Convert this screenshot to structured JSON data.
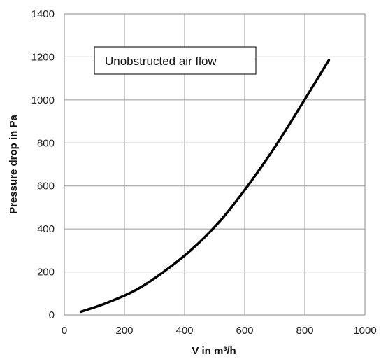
{
  "chart_data": {
    "type": "line",
    "title": "",
    "xlabel": "V in m³/h",
    "ylabel": "Pressure drop in Pa",
    "xlim": [
      0,
      1000
    ],
    "ylim": [
      0,
      1400
    ],
    "x_ticks": [
      0,
      200,
      400,
      600,
      800,
      1000
    ],
    "y_ticks": [
      0,
      200,
      400,
      600,
      800,
      1000,
      1200,
      1400
    ],
    "x_tick_labels": [
      "0",
      "200",
      "400",
      "600",
      "800",
      "1000"
    ],
    "y_tick_labels": [
      "0",
      "200",
      "400",
      "600",
      "800",
      "1000",
      "1200",
      "1400"
    ],
    "grid": true,
    "annotation": "Unobstructed air flow",
    "series": [
      {
        "x": [
          55,
          130,
          230,
          320,
          420,
          520,
          610,
          700,
          790,
          880
        ],
        "y": [
          15,
          50,
          110,
          190,
          300,
          440,
          600,
          780,
          980,
          1185
        ],
        "color": "#000000"
      }
    ]
  }
}
